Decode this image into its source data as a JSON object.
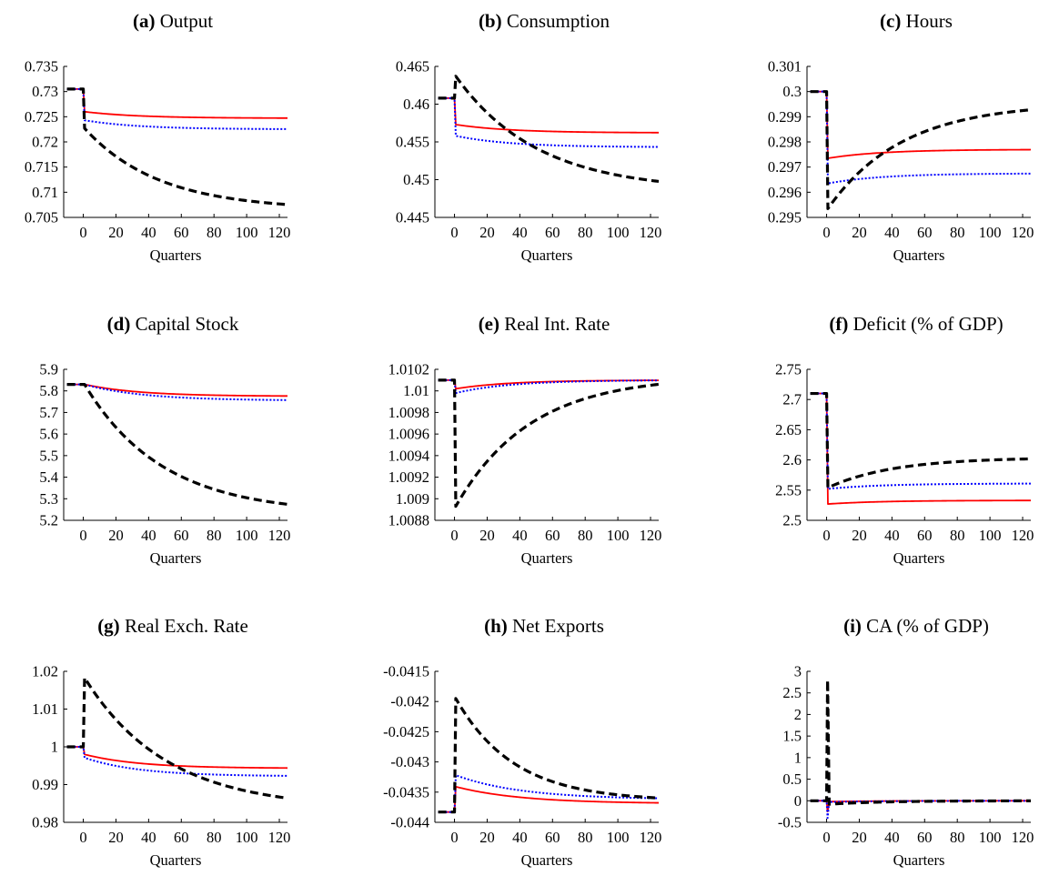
{
  "chart_data": [
    {
      "type": "line",
      "tag": "(a)",
      "title": "Output",
      "xlabel": "Quarters",
      "xticks": [
        0,
        20,
        40,
        60,
        80,
        100,
        120
      ],
      "xlim": [
        -12,
        125
      ],
      "yticks": [
        0.705,
        0.71,
        0.715,
        0.72,
        0.725,
        0.73,
        0.735
      ],
      "ytick_labels": [
        "0.705",
        "0.71",
        "0.715",
        "0.72",
        "0.725",
        "0.73",
        "0.735"
      ],
      "ylim": [
        0.705,
        0.735
      ],
      "series": [
        {
          "color": "#ff0000",
          "style": "solid",
          "pre": 0.7305,
          "start": 0.726,
          "end": 0.7247,
          "rate": 0.03
        },
        {
          "color": "#0000ff",
          "style": "dotted",
          "pre": 0.7305,
          "start": 0.7243,
          "end": 0.7225,
          "rate": 0.03
        },
        {
          "color": "#000000",
          "style": "dashed",
          "pre": 0.7305,
          "start": 0.7227,
          "end": 0.7065,
          "rate": 0.022
        }
      ]
    },
    {
      "type": "line",
      "tag": "(b)",
      "title": "Consumption",
      "xlabel": "Quarters",
      "xticks": [
        0,
        20,
        40,
        60,
        80,
        100,
        120
      ],
      "xlim": [
        -12,
        125
      ],
      "yticks": [
        0.445,
        0.45,
        0.455,
        0.46,
        0.465
      ],
      "ytick_labels": [
        "0.445",
        "0.45",
        "0.455",
        "0.46",
        "0.465"
      ],
      "ylim": [
        0.445,
        0.465
      ],
      "series": [
        {
          "color": "#ff0000",
          "style": "solid",
          "pre": 0.4608,
          "start": 0.4573,
          "end": 0.4562,
          "rate": 0.03
        },
        {
          "color": "#0000ff",
          "style": "dotted",
          "pre": 0.4608,
          "start": 0.4558,
          "end": 0.4543,
          "rate": 0.03
        },
        {
          "color": "#000000",
          "style": "dashed",
          "pre": 0.4608,
          "start": 0.4637,
          "end": 0.4485,
          "rate": 0.02
        }
      ]
    },
    {
      "type": "line",
      "tag": "(c)",
      "title": "Hours",
      "xlabel": "Quarters",
      "xticks": [
        0,
        20,
        40,
        60,
        80,
        100,
        120
      ],
      "xlim": [
        -12,
        125
      ],
      "yticks": [
        0.295,
        0.296,
        0.297,
        0.298,
        0.299,
        0.3,
        0.301
      ],
      "ytick_labels": [
        "0.295",
        "0.296",
        "0.297",
        "0.298",
        "0.299",
        "0.3",
        "0.301"
      ],
      "ylim": [
        0.295,
        0.301
      ],
      "series": [
        {
          "color": "#ff0000",
          "style": "solid",
          "pre": 0.3,
          "start": 0.29735,
          "end": 0.2977,
          "rate": 0.03
        },
        {
          "color": "#0000ff",
          "style": "dotted",
          "pre": 0.3,
          "start": 0.29635,
          "end": 0.29675,
          "rate": 0.03
        },
        {
          "color": "#000000",
          "style": "dashed",
          "pre": 0.3,
          "start": 0.29535,
          "end": 0.29955,
          "rate": 0.022
        }
      ]
    },
    {
      "type": "line",
      "tag": "(d)",
      "title": "Capital Stock",
      "xlabel": "Quarters",
      "xticks": [
        0,
        20,
        40,
        60,
        80,
        100,
        120
      ],
      "xlim": [
        -12,
        125
      ],
      "yticks": [
        5.2,
        5.3,
        5.4,
        5.5,
        5.6,
        5.7,
        5.8,
        5.9
      ],
      "ytick_labels": [
        "5.2",
        "5.3",
        "5.4",
        "5.5",
        "5.6",
        "5.7",
        "5.8",
        "5.9"
      ],
      "ylim": [
        5.2,
        5.9
      ],
      "series": [
        {
          "color": "#ff0000",
          "style": "solid",
          "pre": 5.83,
          "start": 5.83,
          "end": 5.775,
          "rate": 0.03
        },
        {
          "color": "#0000ff",
          "style": "dotted",
          "pre": 5.83,
          "start": 5.83,
          "end": 5.755,
          "rate": 0.028
        },
        {
          "color": "#000000",
          "style": "dashed",
          "pre": 5.83,
          "start": 5.83,
          "end": 5.23,
          "rate": 0.021
        }
      ]
    },
    {
      "type": "line",
      "tag": "(e)",
      "title": "Real Int. Rate",
      "xlabel": "Quarters",
      "xticks": [
        0,
        20,
        40,
        60,
        80,
        100,
        120
      ],
      "xlim": [
        -12,
        125
      ],
      "yticks": [
        1.0088,
        1.009,
        1.0092,
        1.0094,
        1.0096,
        1.0098,
        1.01,
        1.0102
      ],
      "ytick_labels": [
        "1.0088",
        "1.009",
        "1.0092",
        "1.0094",
        "1.0096",
        "1.0098",
        "1.01",
        "1.0102"
      ],
      "ylim": [
        1.0088,
        1.0102
      ],
      "series": [
        {
          "color": "#ff0000",
          "style": "solid",
          "pre": 1.0101,
          "start": 1.01002,
          "end": 1.0101,
          "rate": 0.03
        },
        {
          "color": "#0000ff",
          "style": "dotted",
          "pre": 1.0101,
          "start": 1.00998,
          "end": 1.0101,
          "rate": 0.03
        },
        {
          "color": "#000000",
          "style": "dashed",
          "pre": 1.0101,
          "start": 1.00893,
          "end": 1.01014,
          "rate": 0.022
        }
      ]
    },
    {
      "type": "line",
      "tag": "(f)",
      "title": "Deficit (% of GDP)",
      "xlabel": "Quarters",
      "xticks": [
        0,
        20,
        40,
        60,
        80,
        100,
        120
      ],
      "xlim": [
        -12,
        125
      ],
      "yticks": [
        2.5,
        2.55,
        2.6,
        2.65,
        2.7,
        2.75
      ],
      "ytick_labels": [
        "2.5",
        "2.55",
        "2.6",
        "2.65",
        "2.7",
        "2.75"
      ],
      "ylim": [
        2.5,
        2.75
      ],
      "series": [
        {
          "color": "#ff0000",
          "style": "solid",
          "pre": 2.71,
          "start": 2.527,
          "end": 2.533,
          "rate": 0.03
        },
        {
          "color": "#0000ff",
          "style": "dotted",
          "pre": 2.71,
          "start": 2.552,
          "end": 2.561,
          "rate": 0.03
        },
        {
          "color": "#000000",
          "style": "dashed",
          "pre": 2.71,
          "start": 2.554,
          "end": 2.604,
          "rate": 0.025
        }
      ]
    },
    {
      "type": "line",
      "tag": "(g)",
      "title": "Real Exch. Rate",
      "xlabel": "Quarters",
      "xticks": [
        0,
        20,
        40,
        60,
        80,
        100,
        120
      ],
      "xlim": [
        -12,
        125
      ],
      "yticks": [
        0.98,
        0.99,
        1,
        1.01,
        1.02
      ],
      "ytick_labels": [
        "0.98",
        "0.99",
        "1",
        "1.01",
        "1.02"
      ],
      "ylim": [
        0.98,
        1.02
      ],
      "series": [
        {
          "color": "#ff0000",
          "style": "solid",
          "pre": 1.0,
          "start": 0.998,
          "end": 0.9943,
          "rate": 0.03
        },
        {
          "color": "#0000ff",
          "style": "dotted",
          "pre": 1.0,
          "start": 0.9971,
          "end": 0.9922,
          "rate": 0.03
        },
        {
          "color": "#000000",
          "style": "dashed",
          "pre": 1.0,
          "start": 1.0183,
          "end": 0.9835,
          "rate": 0.02
        }
      ]
    },
    {
      "type": "line",
      "tag": "(h)",
      "title": "Net Exports",
      "xlabel": "Quarters",
      "xticks": [
        0,
        20,
        40,
        60,
        80,
        100,
        120
      ],
      "xlim": [
        -12,
        125
      ],
      "yticks": [
        -0.044,
        -0.0435,
        -0.043,
        -0.0425,
        -0.042,
        -0.0415
      ],
      "ytick_labels": [
        "-0.044",
        "-0.0435",
        "-0.043",
        "-0.0425",
        "-0.042",
        "-0.0415"
      ],
      "ylim": [
        -0.044,
        -0.0415
      ],
      "series": [
        {
          "color": "#ff0000",
          "style": "solid",
          "pre": -0.04383,
          "start": -0.04341,
          "end": -0.04369,
          "rate": 0.025
        },
        {
          "color": "#0000ff",
          "style": "dotted",
          "pre": -0.04383,
          "start": -0.04322,
          "end": -0.04362,
          "rate": 0.025
        },
        {
          "color": "#000000",
          "style": "dashed",
          "pre": -0.04383,
          "start": -0.04195,
          "end": -0.04365,
          "rate": 0.028
        }
      ]
    },
    {
      "type": "line",
      "tag": "(i)",
      "title": "CA (% of GDP)",
      "xlabel": "Quarters",
      "xticks": [
        0,
        20,
        40,
        60,
        80,
        100,
        120
      ],
      "xlim": [
        -12,
        125
      ],
      "yticks": [
        -0.5,
        0,
        0.5,
        1,
        1.5,
        2,
        2.5,
        3
      ],
      "ytick_labels": [
        "-0.5",
        "0",
        "0.5",
        "1",
        "1.5",
        "2",
        "2.5",
        "3"
      ],
      "ylim": [
        -0.5,
        3
      ],
      "series": [
        {
          "color": "#ff0000",
          "style": "solid",
          "pre": 0,
          "spike": -0.25,
          "start": -0.02,
          "end": 0,
          "rate": 0.03
        },
        {
          "color": "#0000ff",
          "style": "dotted",
          "pre": 0,
          "spike": -0.4,
          "start": -0.03,
          "end": 0,
          "rate": 0.03
        },
        {
          "color": "#000000",
          "style": "dashed",
          "pre": 0,
          "spike": 2.8,
          "start": -0.08,
          "end": 0,
          "rate": 0.03
        }
      ]
    }
  ]
}
